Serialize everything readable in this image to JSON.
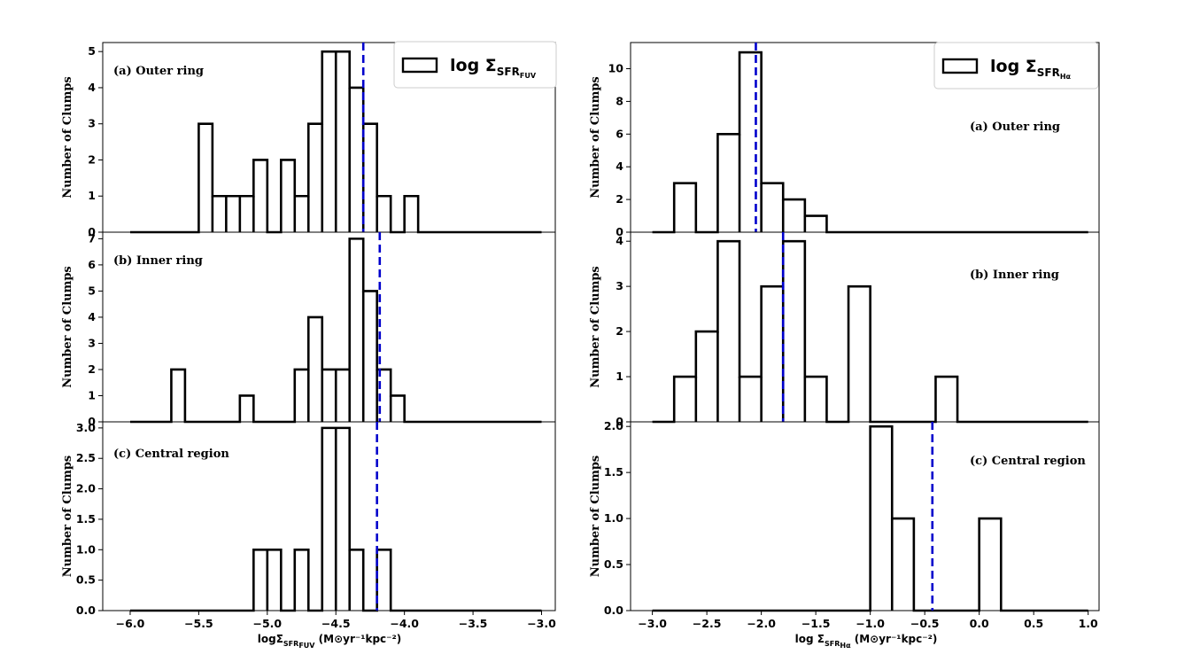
{
  "chart_data": [
    {
      "type": "histogram",
      "name": "fuv",
      "xlim": [
        -6.2,
        -2.9
      ],
      "xticks": [
        -6.0,
        -5.5,
        -5.0,
        -4.5,
        -4.0,
        -3.5,
        -3.0
      ],
      "xtick_labels": [
        "−6.0",
        "−5.5",
        "−5.0",
        "−4.5",
        "−4.0",
        "−3.5",
        "−3.0"
      ],
      "xlabel": {
        "prefix": "logΣ",
        "sub": "SFR",
        "subsub": "FUV",
        "suffix": " (M⊙yr⁻¹kpc⁻²)"
      },
      "legend": {
        "prefix": "log Σ",
        "sub": "SFR",
        "subsub": "FUV",
        "position": "top-right"
      },
      "panels": [
        {
          "label": "(a) Outer ring",
          "ylabel": "Number of Clumps",
          "ylim": [
            0,
            5.25
          ],
          "yticks": [
            0,
            1,
            2,
            3,
            4,
            5
          ],
          "ytick_labels": [
            "0",
            "1",
            "2",
            "3",
            "4",
            "5"
          ],
          "bin_edges": [
            -6.0,
            -5.9,
            -5.8,
            -5.7,
            -5.6,
            -5.5,
            -5.4,
            -5.3,
            -5.2,
            -5.1,
            -5.0,
            -4.9,
            -4.8,
            -4.7,
            -4.6,
            -4.5,
            -4.4,
            -4.3,
            -4.2,
            -4.1,
            -4.0,
            -3.9,
            -3.8,
            -3.7,
            -3.6,
            -3.5,
            -3.4,
            -3.3,
            -3.2,
            -3.1,
            -3.0
          ],
          "counts": [
            0,
            0,
            0,
            0,
            0,
            3,
            1,
            1,
            1,
            2,
            0,
            2,
            1,
            3,
            5,
            5,
            4,
            3,
            1,
            0,
            1,
            0,
            0,
            0,
            0,
            0,
            0,
            0,
            0,
            0
          ],
          "mean": -4.3
        },
        {
          "label": "(b) Inner ring",
          "ylabel": "Number of Clumps",
          "ylim": [
            0,
            7.25
          ],
          "yticks": [
            0,
            1,
            2,
            3,
            4,
            5,
            6,
            7
          ],
          "ytick_labels": [
            "0",
            "1",
            "2",
            "3",
            "4",
            "5",
            "6",
            "7"
          ],
          "bin_edges": [
            -6.0,
            -5.9,
            -5.8,
            -5.7,
            -5.6,
            -5.5,
            -5.4,
            -5.3,
            -5.2,
            -5.1,
            -5.0,
            -4.9,
            -4.8,
            -4.7,
            -4.6,
            -4.5,
            -4.4,
            -4.3,
            -4.2,
            -4.1,
            -4.0,
            -3.9,
            -3.8,
            -3.7,
            -3.6,
            -3.5,
            -3.4,
            -3.3,
            -3.2,
            -3.1,
            -3.0
          ],
          "counts": [
            0,
            0,
            0,
            2,
            0,
            0,
            0,
            0,
            1,
            0,
            0,
            0,
            2,
            4,
            2,
            2,
            7,
            5,
            2,
            1,
            0,
            0,
            0,
            0,
            0,
            0,
            0,
            0,
            0,
            0
          ],
          "mean": -4.18
        },
        {
          "label": "(c) Central region",
          "ylabel": "Number of Clumps",
          "ylim": [
            0,
            3.1
          ],
          "yticks": [
            0,
            0.5,
            1.0,
            1.5,
            2.0,
            2.5,
            3.0
          ],
          "ytick_labels": [
            "0.0",
            "0.5",
            "1.0",
            "1.5",
            "2.0",
            "2.5",
            "3.0"
          ],
          "bin_edges": [
            -6.0,
            -5.9,
            -5.8,
            -5.7,
            -5.6,
            -5.5,
            -5.4,
            -5.3,
            -5.2,
            -5.1,
            -5.0,
            -4.9,
            -4.8,
            -4.7,
            -4.6,
            -4.5,
            -4.4,
            -4.3,
            -4.2,
            -4.1,
            -4.0,
            -3.9,
            -3.8,
            -3.7,
            -3.6,
            -3.5,
            -3.4,
            -3.3,
            -3.2,
            -3.1,
            -3.0
          ],
          "counts": [
            0,
            0,
            0,
            0,
            0,
            0,
            0,
            0,
            0,
            1,
            1,
            0,
            1,
            0,
            3,
            3,
            1,
            0,
            1,
            0,
            0,
            0,
            0,
            0,
            0,
            0,
            0,
            0,
            0,
            0
          ],
          "mean": -4.2
        }
      ]
    },
    {
      "type": "histogram",
      "name": "halpha",
      "xlim": [
        -3.2,
        1.1
      ],
      "xticks": [
        -3.0,
        -2.5,
        -2.0,
        -1.5,
        -1.0,
        -0.5,
        0.0,
        0.5,
        1.0
      ],
      "xtick_labels": [
        "−3.0",
        "−2.5",
        "−2.0",
        "−1.5",
        "−1.0",
        "−0.5",
        "0.0",
        "0.5",
        "1.0"
      ],
      "xlabel": {
        "prefix": "log Σ",
        "sub": "SFR",
        "subsub": "Hα",
        "suffix": " (M⊙yr⁻¹kpc⁻²)"
      },
      "legend": {
        "prefix": "log Σ",
        "sub": "SFR",
        "subsub": "Hα",
        "position": "top-right"
      },
      "panels": [
        {
          "label": "(a) Outer ring",
          "ylabel": "Number of Clumps",
          "ylim": [
            0,
            11.6
          ],
          "yticks": [
            0,
            2,
            4,
            6,
            8,
            10
          ],
          "ytick_labels": [
            "0",
            "2",
            "4",
            "6",
            "8",
            "10"
          ],
          "bin_edges": [
            -3.0,
            -2.8,
            -2.6,
            -2.4,
            -2.2,
            -2.0,
            -1.8,
            -1.6,
            -1.4,
            -1.2,
            -1.0,
            -0.8,
            -0.6,
            -0.4,
            -0.2,
            0.0,
            0.2,
            0.4,
            0.6,
            0.8,
            1.0
          ],
          "counts": [
            0,
            3,
            0,
            6,
            11,
            3,
            2,
            1,
            0,
            0,
            0,
            0,
            0,
            0,
            0,
            0,
            0,
            0,
            0,
            0
          ],
          "mean": -2.05
        },
        {
          "label": "(b) Inner ring",
          "ylabel": "Number of Clumps",
          "ylim": [
            0,
            4.2
          ],
          "yticks": [
            0,
            1,
            2,
            3,
            4
          ],
          "ytick_labels": [
            "0",
            "1",
            "2",
            "3",
            "4"
          ],
          "bin_edges": [
            -3.0,
            -2.8,
            -2.6,
            -2.4,
            -2.2,
            -2.0,
            -1.8,
            -1.6,
            -1.4,
            -1.2,
            -1.0,
            -0.8,
            -0.6,
            -0.4,
            -0.2,
            0.0,
            0.2,
            0.4,
            0.6,
            0.8,
            1.0
          ],
          "counts": [
            0,
            1,
            2,
            4,
            1,
            3,
            4,
            1,
            0,
            3,
            0,
            0,
            0,
            1,
            0,
            0,
            0,
            0,
            0,
            0
          ],
          "mean": -1.8
        },
        {
          "label": "(c) Central region",
          "ylabel": "Number of Clumps",
          "ylim": [
            0,
            2.05
          ],
          "yticks": [
            0,
            0.5,
            1.0,
            1.5,
            2.0
          ],
          "ytick_labels": [
            "0.0",
            "0.5",
            "1.0",
            "1.5",
            "2.0"
          ],
          "bin_edges": [
            -3.0,
            -2.8,
            -2.6,
            -2.4,
            -2.2,
            -2.0,
            -1.8,
            -1.6,
            -1.4,
            -1.2,
            -1.0,
            -0.8,
            -0.6,
            -0.4,
            -0.2,
            0.0,
            0.2,
            0.4,
            0.6,
            0.8,
            1.0
          ],
          "counts": [
            0,
            0,
            0,
            0,
            0,
            0,
            0,
            0,
            0,
            0,
            2,
            1,
            0,
            0,
            0,
            1,
            0,
            0,
            0,
            0
          ],
          "mean": -0.43
        }
      ]
    }
  ],
  "colors": {
    "histogram": "#000000",
    "mean_line": "#0000cc",
    "background": "#ffffff"
  }
}
